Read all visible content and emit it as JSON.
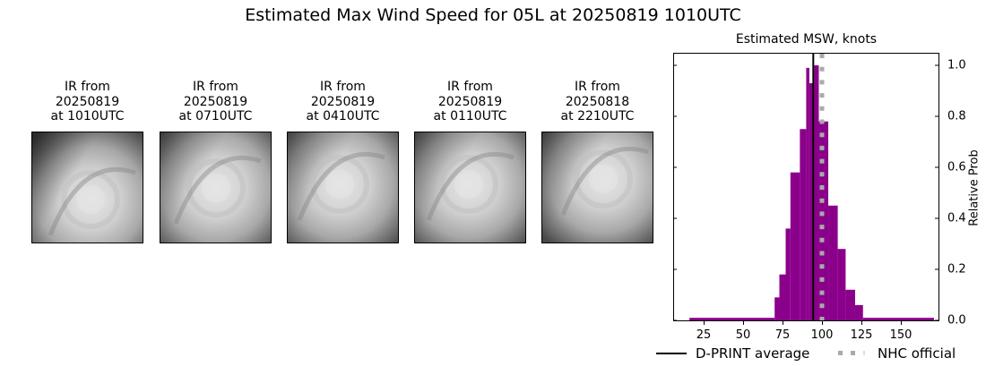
{
  "figure": {
    "title": "Estimated Max Wind Speed for 05L at 20250819 1010UTC"
  },
  "ir_panels": [
    {
      "label": "IR from\n20250819\nat 1010UTC",
      "date": "20250819",
      "time": "1010UTC"
    },
    {
      "label": "IR from\n20250819\nat 0710UTC",
      "date": "20250819",
      "time": "0710UTC"
    },
    {
      "label": "IR from\n20250819\nat 0410UTC",
      "date": "20250819",
      "time": "0410UTC"
    },
    {
      "label": "IR from\n20250819\nat 0110UTC",
      "date": "20250819",
      "time": "0110UTC"
    },
    {
      "label": "IR from\n20250818\nat 2210UTC",
      "date": "20250818",
      "time": "2210UTC"
    }
  ],
  "chart_data": {
    "type": "bar",
    "title": "Estimated MSW, knots",
    "xlabel": "",
    "ylabel": "Relative Prob",
    "xlim": [
      6,
      175
    ],
    "ylim": [
      0,
      1.05
    ],
    "xticks": [
      25,
      50,
      75,
      100,
      125,
      150
    ],
    "yticks": [
      0.0,
      0.2,
      0.4,
      0.6,
      0.8,
      1.0
    ],
    "ytick_labels": [
      "0.0",
      "0.2",
      "0.4",
      "0.6",
      "0.8",
      "1.0"
    ],
    "y_axis_position": "right",
    "grid": false,
    "bar_color": "#8b008b",
    "bins": [
      {
        "x0": 16,
        "x1": 70,
        "value": 0.01
      },
      {
        "x0": 70,
        "x1": 73,
        "value": 0.09
      },
      {
        "x0": 73,
        "x1": 77,
        "value": 0.18
      },
      {
        "x0": 77,
        "x1": 80,
        "value": 0.36
      },
      {
        "x0": 80,
        "x1": 86,
        "value": 0.58
      },
      {
        "x0": 86,
        "x1": 90,
        "value": 0.75
      },
      {
        "x0": 90,
        "x1": 92,
        "value": 0.99
      },
      {
        "x0": 92,
        "x1": 95,
        "value": 0.93
      },
      {
        "x0": 95,
        "x1": 98,
        "value": 1.0
      },
      {
        "x0": 98,
        "x1": 104,
        "value": 0.78
      },
      {
        "x0": 104,
        "x1": 110,
        "value": 0.45
      },
      {
        "x0": 110,
        "x1": 115,
        "value": 0.28
      },
      {
        "x0": 115,
        "x1": 121,
        "value": 0.12
      },
      {
        "x0": 121,
        "x1": 126,
        "value": 0.06
      },
      {
        "x0": 126,
        "x1": 171,
        "value": 0.01
      }
    ],
    "lines": [
      {
        "name": "D-PRINT average",
        "x": 94.5,
        "color": "#000000",
        "style": "solid"
      },
      {
        "name": "NHC official",
        "x": 100,
        "color": "#aaaaaa",
        "style": "dotted"
      }
    ],
    "legend": {
      "position": "bottom",
      "entries": [
        "D-PRINT average",
        "NHC official"
      ]
    }
  },
  "legend": {
    "dprint_label": "D-PRINT average",
    "nhc_label": "NHC official"
  }
}
